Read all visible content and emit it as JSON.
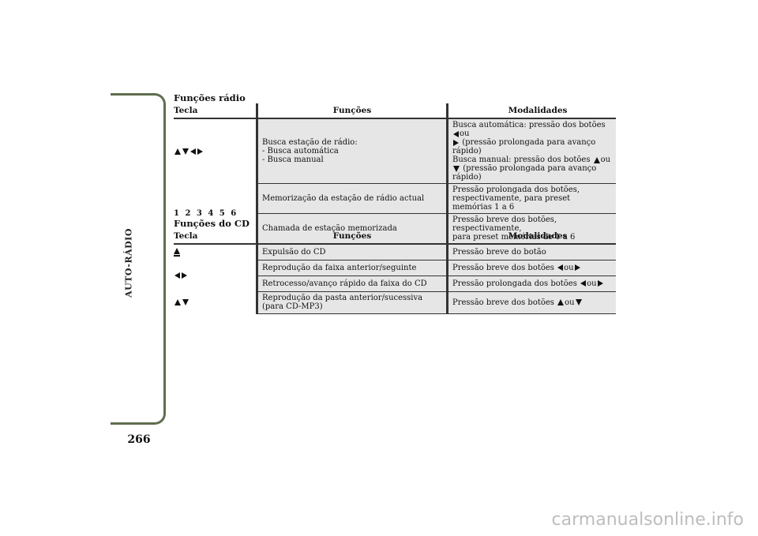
{
  "page": {
    "side_label": "AUTO-RÁDIO",
    "page_number": "266",
    "watermark": "carmanualsonline.info"
  },
  "radio": {
    "title": "Funções rádio",
    "headers": {
      "tecla": "Tecla",
      "funcoes": "Funções",
      "modalidades": "Modalidades"
    },
    "rows": [
      {
        "key_icons": [
          "arrow-up",
          "arrow-down",
          "arrow-left",
          "arrow-right"
        ],
        "funcao": [
          "Busca estação de rádio:",
          "- Busca automática",
          "- Busca manual"
        ],
        "mod": {
          "l1": "Busca automática: pressão dos botões",
          "l1_or": "ou",
          "l2": "(pressão prolongada para avanço rápido)",
          "l3": "Busca manual: pressão dos botões",
          "l3_or": "ou",
          "l4": "(pressão prolongada para avanço rápido)"
        }
      },
      {
        "key_text": "1 2 3 4 5 6",
        "funcao": "Memorização da estação de rádio actual",
        "mod": [
          "Pressão prolongada dos botões,",
          "respectivamente, para preset memórias 1 a 6"
        ]
      },
      {
        "funcao": "Chamada de estação memorizada",
        "mod": [
          "Pressão breve dos botões, respectivamente,",
          "para preset memórias de 1 a 6"
        ]
      }
    ]
  },
  "cd": {
    "title": "Funções do CD",
    "headers": {
      "tecla": "Tecla",
      "funcoes": "Funções",
      "modalidades": "Modalidades"
    },
    "rows": [
      {
        "key_icons": [
          "eject"
        ],
        "funcao": "Expulsão do CD",
        "mod": "Pressão breve do botão"
      },
      {
        "key_icons": [
          "arrow-left",
          "arrow-right"
        ],
        "funcao": "Reprodução da faixa anterior/seguinte",
        "mod": "Pressão breve dos botões",
        "mod_or": "ou"
      },
      {
        "funcao": "Retrocesso/avanço rápido da faixa do CD",
        "mod": "Pressão prolongada dos botões",
        "mod_or": "ou"
      },
      {
        "key_icons": [
          "arrow-up",
          "arrow-down"
        ],
        "funcao": [
          "Reprodução da pasta anterior/sucessiva",
          "(para CD-MP3)"
        ],
        "mod": "Pressão breve dos botões",
        "mod_or": "ou"
      }
    ]
  }
}
